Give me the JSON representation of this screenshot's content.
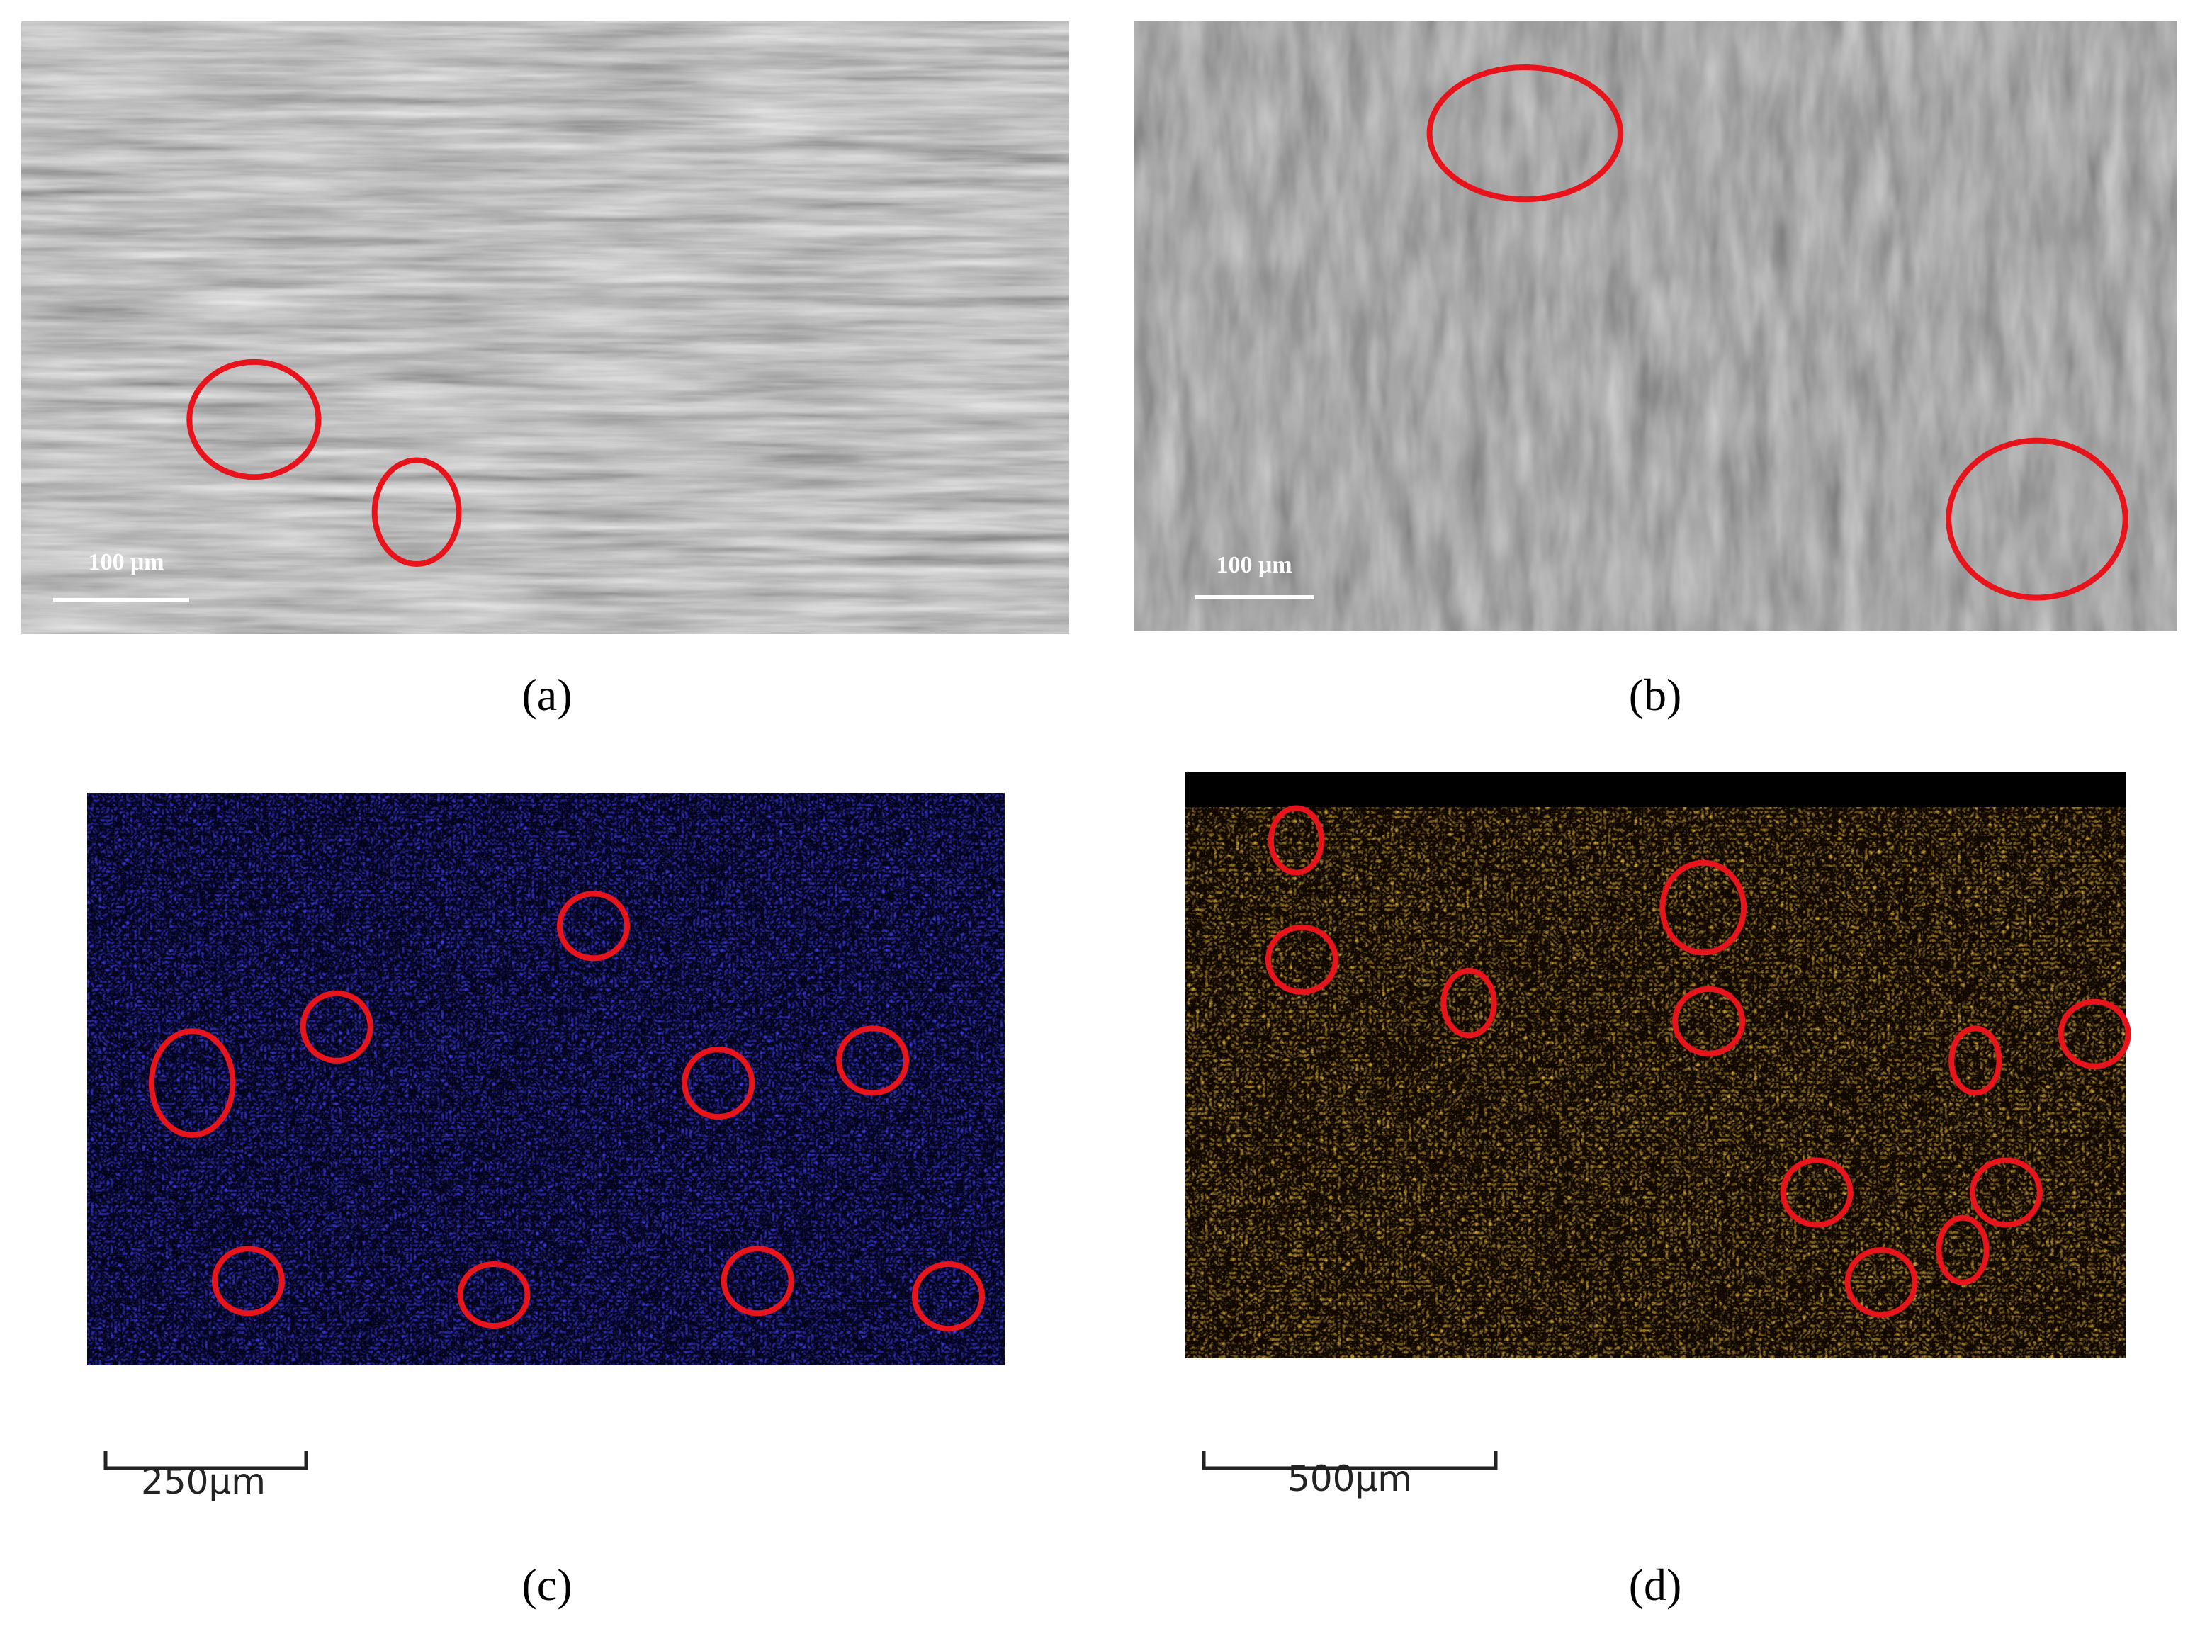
{
  "panels": [
    {
      "label": "(a)",
      "scale_bar": "100 μm"
    },
    {
      "label": "(b)",
      "scale_bar": "100 μm"
    },
    {
      "label": "(c)",
      "scale_bar": "250μm"
    },
    {
      "label": "(d)",
      "scale_bar": "500μm"
    }
  ]
}
